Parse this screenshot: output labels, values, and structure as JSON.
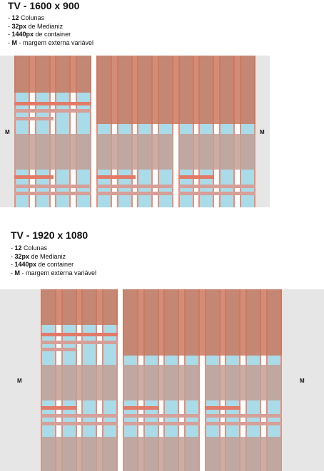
{
  "sections": [
    {
      "title": "TV - 1600 x 900",
      "bullets": [
        {
          "prefix": "- ",
          "bold": "12",
          "rest": " Colunas"
        },
        {
          "prefix": "- ",
          "bold": "32px",
          "rest": " de Medianiz"
        },
        {
          "prefix": "- ",
          "bold": "1440px",
          "rest": " de container"
        },
        {
          "prefix": "- ",
          "bold": "M",
          "rest": " - margem externa variável"
        }
      ],
      "margin_label_left": "M",
      "margin_label_right": "M"
    },
    {
      "title": "TV - 1920 x 1080",
      "bullets": [
        {
          "prefix": "- ",
          "bold": "12",
          "rest": " Colunas"
        },
        {
          "prefix": "- ",
          "bold": "32px",
          "rest": " de Medianiz"
        },
        {
          "prefix": "- ",
          "bold": "1440px",
          "rest": " de container"
        },
        {
          "prefix": "- ",
          "bold": "M",
          "rest": " - margem externa variável"
        }
      ],
      "margin_label_left": "M",
      "margin_label_right": "M"
    }
  ],
  "colors": {
    "column": "#a9dbe9",
    "gutter_edge": "#eb8c78",
    "image_block": "#c8745a",
    "text_block": "#c4a096",
    "margin_bg": "#e6e6e6"
  }
}
